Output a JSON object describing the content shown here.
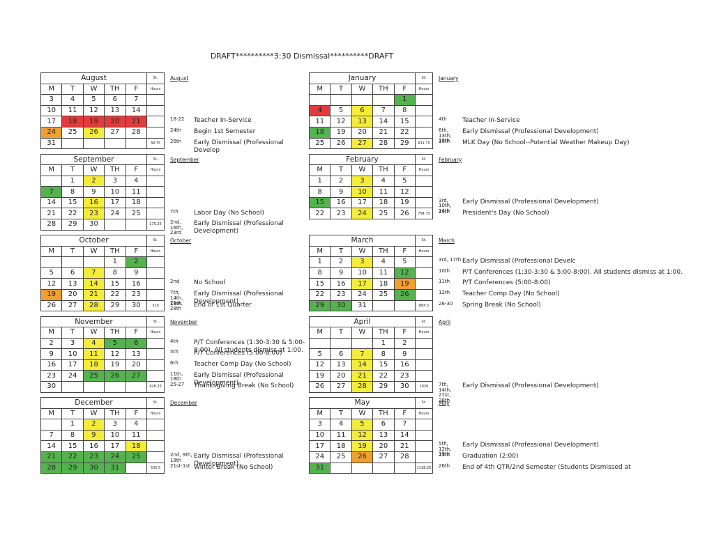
{
  "title": "DRAFT**********3:30 Dismissal**********DRAFT",
  "st_label": "St.",
  "hours_label": "Hours",
  "weekdays": [
    "M",
    "T",
    "W",
    "TH",
    "F"
  ],
  "palette": {
    "red": "#e23b3b",
    "yellow": "#f5ec3a",
    "green": "#55b24f",
    "orange": "#f0a02e"
  },
  "months": [
    {
      "name": "August",
      "weeks": [
        [
          3,
          4,
          5,
          6,
          7
        ],
        [
          10,
          11,
          12,
          13,
          14
        ],
        [
          17,
          18,
          19,
          20,
          21
        ],
        [
          24,
          25,
          26,
          27,
          28
        ],
        [
          31,
          null,
          null,
          null,
          null
        ]
      ],
      "colors": [
        [
          null,
          null,
          null,
          null,
          null
        ],
        [
          null,
          null,
          null,
          null,
          null
        ],
        [
          null,
          "red",
          "red",
          "red",
          "red"
        ],
        [
          "orange",
          null,
          "yellow",
          null,
          null
        ],
        [
          null,
          null,
          null,
          null,
          null
        ]
      ],
      "hours": "38.75",
      "notes": [
        {
          "date": "18-22",
          "text": "Teacher In-Service"
        },
        {
          "date": "24th",
          "text": "Begin 1st Semester"
        },
        {
          "date": "26th",
          "text": "Early Dismissal (Professional Develop"
        }
      ]
    },
    {
      "name": "September",
      "weeks": [
        [
          null,
          1,
          2,
          3,
          4
        ],
        [
          7,
          8,
          9,
          10,
          11
        ],
        [
          14,
          15,
          16,
          17,
          18
        ],
        [
          21,
          22,
          23,
          24,
          25
        ],
        [
          28,
          29,
          30,
          null,
          null
        ]
      ],
      "colors": [
        [
          null,
          null,
          "yellow",
          null,
          null
        ],
        [
          "green",
          null,
          null,
          null,
          null
        ],
        [
          null,
          null,
          "yellow",
          null,
          null
        ],
        [
          null,
          null,
          "yellow",
          null,
          null
        ],
        [
          null,
          null,
          null,
          null,
          null
        ]
      ],
      "hours": "175.25",
      "notes": [
        {
          "date": "7th",
          "text": "Labor Day (No School)"
        },
        {
          "date": "2nd, 16th, 23rd",
          "text": "Early Dismissal (Professional Development)"
        }
      ]
    },
    {
      "name": "October",
      "weeks": [
        [
          null,
          null,
          null,
          1,
          2
        ],
        [
          5,
          6,
          7,
          8,
          9
        ],
        [
          12,
          13,
          14,
          15,
          16
        ],
        [
          19,
          20,
          21,
          22,
          23
        ],
        [
          26,
          27,
          28,
          29,
          30
        ]
      ],
      "colors": [
        [
          null,
          null,
          null,
          null,
          "green"
        ],
        [
          null,
          null,
          "yellow",
          null,
          null
        ],
        [
          null,
          null,
          "yellow",
          null,
          null
        ],
        [
          "orange",
          null,
          "yellow",
          null,
          null
        ],
        [
          null,
          null,
          "yellow",
          null,
          null
        ]
      ],
      "hours": "310",
      "notes": [
        {
          "date": "2nd",
          "text": "No School"
        },
        {
          "date": "7th, 14th, 21st, 28th",
          "text": "Early Dismissal (Professional Development)"
        },
        {
          "date": "19th",
          "text": "End of 1st Quarter"
        }
      ]
    },
    {
      "name": "November",
      "weeks": [
        [
          2,
          3,
          4,
          5,
          6
        ],
        [
          9,
          10,
          11,
          12,
          13
        ],
        [
          16,
          17,
          18,
          19,
          20
        ],
        [
          23,
          24,
          25,
          26,
          27
        ],
        [
          30,
          null,
          null,
          null,
          null
        ]
      ],
      "colors": [
        [
          null,
          null,
          "yellow",
          "green",
          "green"
        ],
        [
          null,
          null,
          "yellow",
          null,
          null
        ],
        [
          null,
          null,
          "yellow",
          null,
          null
        ],
        [
          null,
          null,
          "green",
          "green",
          "green"
        ],
        [
          null,
          null,
          null,
          null,
          null
        ]
      ],
      "hours": "426.25",
      "notes": [
        {
          "date": "4th",
          "text": "P/T Conferences (1:30-3:30 & 5:00-8:00). All students dismiss at 1:00."
        },
        {
          "date": "5th",
          "text": "P/T Conferences (5:00-8:00)"
        },
        {
          "date": "6th",
          "text": "Teacher Comp Day (No School)"
        },
        {
          "date": "11th, 18th",
          "text": "Early Dismissal (Professional Development)"
        },
        {
          "date": "25-27",
          "text": "Thanksgiving Break (No School)"
        }
      ]
    },
    {
      "name": "December",
      "weeks": [
        [
          null,
          1,
          2,
          3,
          4
        ],
        [
          7,
          8,
          9,
          10,
          11
        ],
        [
          14,
          15,
          16,
          17,
          18
        ],
        [
          21,
          22,
          23,
          24,
          25
        ],
        [
          28,
          29,
          30,
          31,
          null
        ]
      ],
      "colors": [
        [
          null,
          null,
          "yellow",
          null,
          null
        ],
        [
          null,
          null,
          "yellow",
          null,
          null
        ],
        [
          null,
          null,
          null,
          null,
          "yellow"
        ],
        [
          "green",
          "green",
          "green",
          "green",
          "green"
        ],
        [
          "green",
          "green",
          "green",
          "green",
          null
        ]
      ],
      "hours": "535.5",
      "notes": [
        {
          "date": "2nd, 9th, 18th",
          "text": "Early Dismissal (Professional Development)"
        },
        {
          "date": "21st-1st",
          "text": "Winter Break (No School)"
        }
      ]
    },
    {
      "name": "January",
      "weeks": [
        [
          null,
          null,
          null,
          null,
          1
        ],
        [
          4,
          5,
          6,
          7,
          8
        ],
        [
          11,
          12,
          13,
          14,
          15
        ],
        [
          18,
          19,
          20,
          21,
          22
        ],
        [
          25,
          26,
          27,
          28,
          29
        ]
      ],
      "colors": [
        [
          null,
          null,
          null,
          null,
          "green"
        ],
        [
          "red",
          null,
          "yellow",
          null,
          null
        ],
        [
          null,
          null,
          "yellow",
          null,
          null
        ],
        [
          "green",
          null,
          null,
          null,
          null
        ],
        [
          null,
          null,
          "yellow",
          null,
          null
        ]
      ],
      "hours": "631.75",
      "notes": [
        {
          "date": "4th",
          "text": "Teacher In-Service"
        },
        {
          "date": "6th, 13th, 27th",
          "text": "Early Dismissal (Professional Development)"
        },
        {
          "date": "18th",
          "text": "MLK Day (No School--Potential Weather Makeup Day)"
        }
      ]
    },
    {
      "name": "February",
      "weeks": [
        [
          1,
          2,
          3,
          4,
          5
        ],
        [
          8,
          9,
          10,
          11,
          12
        ],
        [
          15,
          16,
          17,
          18,
          19
        ],
        [
          22,
          23,
          24,
          25,
          26
        ]
      ],
      "colors": [
        [
          null,
          null,
          "yellow",
          null,
          null
        ],
        [
          null,
          null,
          "yellow",
          null,
          null
        ],
        [
          "green",
          null,
          null,
          null,
          null
        ],
        [
          null,
          null,
          "yellow",
          null,
          null
        ]
      ],
      "hours": "754.75",
      "notes": [
        {
          "date": "3rd, 10th, 24th",
          "text": "Early Dismissal (Professional Development)"
        },
        {
          "date": "15th",
          "text": "President's Day (No School)"
        }
      ]
    },
    {
      "name": "March",
      "weeks": [
        [
          1,
          2,
          3,
          4,
          5
        ],
        [
          8,
          9,
          10,
          11,
          12
        ],
        [
          15,
          16,
          17,
          18,
          19
        ],
        [
          22,
          23,
          24,
          25,
          26
        ],
        [
          29,
          30,
          31,
          null,
          null
        ]
      ],
      "colors": [
        [
          null,
          null,
          "yellow",
          null,
          null
        ],
        [
          null,
          null,
          null,
          null,
          "green"
        ],
        [
          null,
          null,
          "yellow",
          null,
          "orange"
        ],
        [
          null,
          null,
          null,
          null,
          "green"
        ],
        [
          "green",
          "green",
          null,
          null,
          null
        ]
      ],
      "hours": "884.5",
      "notes": [
        {
          "date": "3rd, 17th",
          "text": "Early Dismissal (Professional Develc"
        },
        {
          "date": "10th",
          "text": "P/T Conferences (1:30-3:30 & 5:00-8:00). All students dismiss at 1:00."
        },
        {
          "date": "11th",
          "text": "P/T Conferences (5:00-8:00)"
        },
        {
          "date": "12th",
          "text": "Teacher Comp Day (No School)"
        },
        {
          "date": "26-30",
          "text": "Spring Break (No School)"
        }
      ]
    },
    {
      "name": "April",
      "weeks": [
        [
          null,
          null,
          null,
          1,
          2
        ],
        [
          5,
          6,
          7,
          8,
          9
        ],
        [
          12,
          13,
          14,
          15,
          16
        ],
        [
          19,
          20,
          21,
          22,
          23
        ],
        [
          26,
          27,
          28,
          29,
          30
        ]
      ],
      "colors": [
        [
          null,
          null,
          null,
          null,
          null
        ],
        [
          null,
          null,
          "yellow",
          null,
          null
        ],
        [
          null,
          null,
          "yellow",
          null,
          null
        ],
        [
          null,
          null,
          "yellow",
          null,
          null
        ],
        [
          null,
          null,
          "yellow",
          null,
          null
        ]
      ],
      "hours": "1026",
      "notes": [
        {
          "date": "7th, 14th, 21st, 28th",
          "text": "Early Dismissal (Professional Development)"
        }
      ]
    },
    {
      "name": "May",
      "weeks": [
        [
          3,
          4,
          5,
          6,
          7
        ],
        [
          10,
          11,
          12,
          13,
          14
        ],
        [
          17,
          18,
          19,
          20,
          21
        ],
        [
          24,
          25,
          26,
          27,
          28
        ],
        [
          31,
          null,
          null,
          null,
          null
        ]
      ],
      "colors": [
        [
          null,
          null,
          "yellow",
          null,
          null
        ],
        [
          null,
          null,
          "yellow",
          null,
          null
        ],
        [
          null,
          null,
          "yellow",
          null,
          null
        ],
        [
          null,
          null,
          "orange",
          null,
          null
        ],
        [
          "green",
          null,
          null,
          null,
          null
        ]
      ],
      "hours": "1138.25",
      "notes": [
        {
          "date": "5th, 12th, 19th",
          "text": "Early Dismissal (Professional Development)"
        },
        {
          "date": "23rd",
          "text": "Graduation (2:00)"
        },
        {
          "date": "26th",
          "text": "End of 4th QTR/2nd Semester (Students  Dismissed at"
        }
      ]
    }
  ]
}
